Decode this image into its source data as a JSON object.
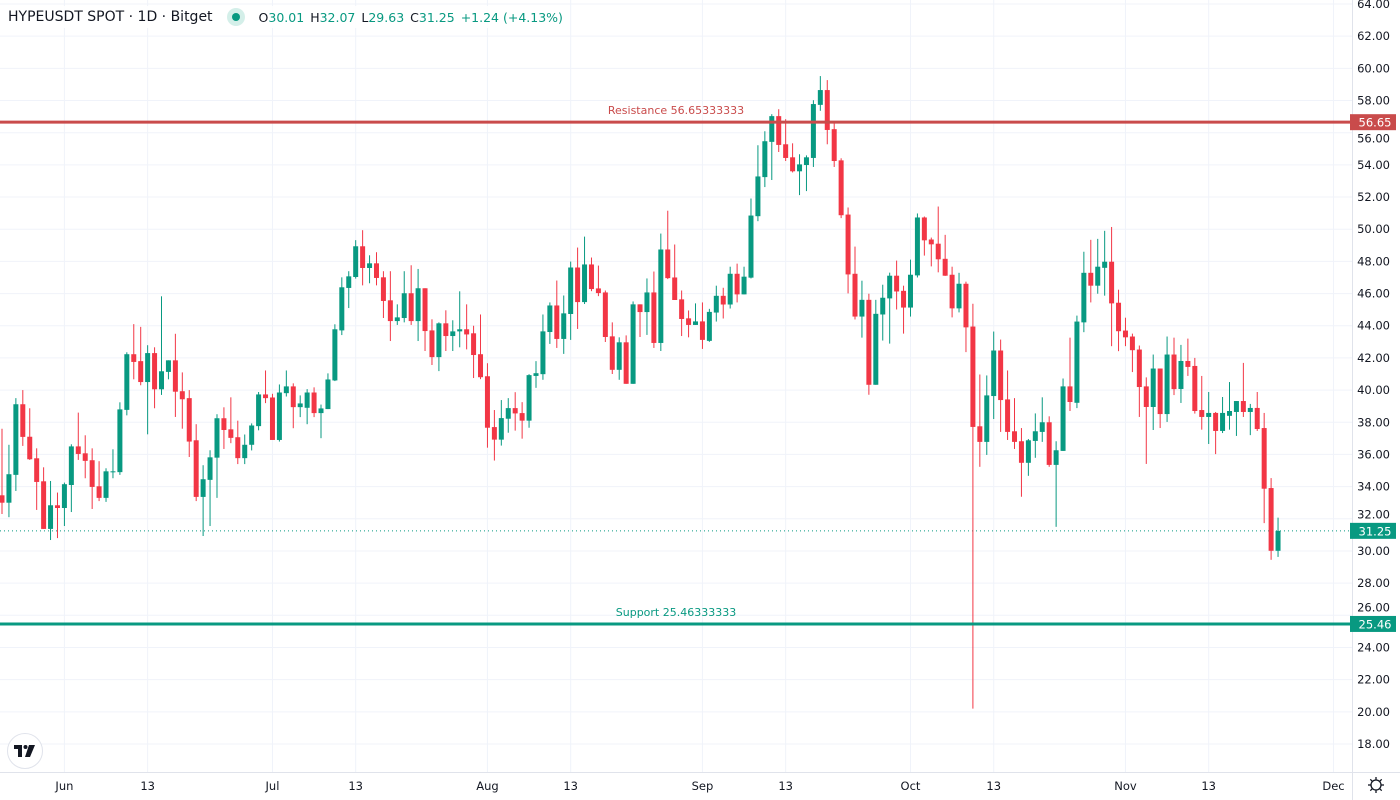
{
  "header": {
    "symbol": "HYPEUSDT SPOT · 1D · Bitget",
    "status_color": "#089981",
    "o_label": "O",
    "o_value": "30.01",
    "h_label": "H",
    "h_value": "32.07",
    "l_label": "L",
    "l_value": "29.63",
    "c_label": "C",
    "c_value": "31.25",
    "change": "+1.24 (+4.13%)"
  },
  "logo": "TV",
  "settings_icon": "gear-icon",
  "colors": {
    "up": "#089981",
    "down": "#f23645",
    "resistance": "#c94b4b",
    "support": "#089981"
  },
  "chart_data": {
    "type": "candlestick",
    "title": "HYPEUSDT SPOT · 1D · Bitget",
    "start_date": "May 23",
    "end_date": "Nov 23",
    "ylim": [
      16.9,
      64.25
    ],
    "y_ticks": [
      "64.00",
      "62.00",
      "60.00",
      "58.00",
      "56.00",
      "54.00",
      "52.00",
      "50.00",
      "48.00",
      "46.00",
      "44.00",
      "42.00",
      "40.00",
      "38.00",
      "36.00",
      "34.00",
      "32.00",
      "30.00",
      "28.00",
      "26.00",
      "24.00",
      "22.00",
      "20.00",
      "18.00"
    ],
    "x_ticks": [
      {
        "label": "Jun",
        "index": 9
      },
      {
        "label": "13",
        "index": 21
      },
      {
        "label": "Jul",
        "index": 39
      },
      {
        "label": "13",
        "index": 51
      },
      {
        "label": "Aug",
        "index": 70
      },
      {
        "label": "13",
        "index": 82
      },
      {
        "label": "Sep",
        "index": 101
      },
      {
        "label": "13",
        "index": 113
      },
      {
        "label": "Oct",
        "index": 131
      },
      {
        "label": "13",
        "index": 143
      },
      {
        "label": "Nov",
        "index": 162
      },
      {
        "label": "13",
        "index": 174
      },
      {
        "label": "Dec",
        "index": 192
      }
    ],
    "last_price": {
      "value": 31.25,
      "label": "31.25"
    },
    "lines": [
      {
        "name": "Resistance",
        "value": 56.65333333,
        "text": "Resistance 56.65333333",
        "tag": "56.65",
        "kind": "resistance"
      },
      {
        "name": "Support",
        "value": 25.46333333,
        "text": "Support 25.46333333",
        "tag": "25.46",
        "kind": "support"
      }
    ],
    "ohlc": [
      [
        33.46,
        37.6,
        32.3,
        33.0
      ],
      [
        33.0,
        36.6,
        32.1,
        34.77
      ],
      [
        34.73,
        39.5,
        33.73,
        39.12
      ],
      [
        39.12,
        40.0,
        36.53,
        37.09
      ],
      [
        37.1,
        38.87,
        35.66,
        35.7
      ],
      [
        35.76,
        36.38,
        32.55,
        34.29
      ],
      [
        34.33,
        35.2,
        31.37,
        31.37
      ],
      [
        31.37,
        34.35,
        30.68,
        32.84
      ],
      [
        32.84,
        33.63,
        30.8,
        32.67
      ],
      [
        32.67,
        34.25,
        31.55,
        34.15
      ],
      [
        34.1,
        36.63,
        32.42,
        36.5
      ],
      [
        36.5,
        38.6,
        35.66,
        36.03
      ],
      [
        36.07,
        37.19,
        34.52,
        35.6
      ],
      [
        35.64,
        36.38,
        32.61,
        33.98
      ],
      [
        34.02,
        35.58,
        33.1,
        33.3
      ],
      [
        33.3,
        35.14,
        33.05,
        34.95
      ],
      [
        34.9,
        36.32,
        34.52,
        34.95
      ],
      [
        34.9,
        39.24,
        34.73,
        38.8
      ],
      [
        38.77,
        42.35,
        38.43,
        42.23
      ],
      [
        42.23,
        44.1,
        40.67,
        41.75
      ],
      [
        41.8,
        43.93,
        40.3,
        40.5
      ],
      [
        40.5,
        42.79,
        37.25,
        42.3
      ],
      [
        42.3,
        42.66,
        38.87,
        40.05
      ],
      [
        40.05,
        45.83,
        39.7,
        41.17
      ],
      [
        41.13,
        41.85,
        40.67,
        41.85
      ],
      [
        41.85,
        43.5,
        38.33,
        39.9
      ],
      [
        39.93,
        41.1,
        37.6,
        39.43
      ],
      [
        39.5,
        40.0,
        35.84,
        36.8
      ],
      [
        36.88,
        37.88,
        33.1,
        33.36
      ],
      [
        33.36,
        35.33,
        30.93,
        34.46
      ],
      [
        34.42,
        36.26,
        31.55,
        35.82
      ],
      [
        35.8,
        38.5,
        33.3,
        38.25
      ],
      [
        38.25,
        38.93,
        36.34,
        37.52
      ],
      [
        37.56,
        39.55,
        36.7,
        37.03
      ],
      [
        37.07,
        38.1,
        35.4,
        35.77
      ],
      [
        35.77,
        37.24,
        35.4,
        36.6
      ],
      [
        36.6,
        37.93,
        36.25,
        37.8
      ],
      [
        37.76,
        39.88,
        37.5,
        39.73
      ],
      [
        39.73,
        41.22,
        39.19,
        39.5
      ],
      [
        39.54,
        39.77,
        36.9,
        36.9
      ],
      [
        36.9,
        40.35,
        36.8,
        39.85
      ],
      [
        39.81,
        41.22,
        39.6,
        40.23
      ],
      [
        40.23,
        40.42,
        37.63,
        38.94
      ],
      [
        38.94,
        39.67,
        38.32,
        39.17
      ],
      [
        38.9,
        40.06,
        37.88,
        39.85
      ],
      [
        39.85,
        40.17,
        38.32,
        38.57
      ],
      [
        38.57,
        39.1,
        37.01,
        38.86
      ],
      [
        38.82,
        41.04,
        38.82,
        40.66
      ],
      [
        40.6,
        44.09,
        40.56,
        43.78
      ],
      [
        43.71,
        47.01,
        43.42,
        46.39
      ],
      [
        46.35,
        47.39,
        45.1,
        47.07
      ],
      [
        47.03,
        49.32,
        46.93,
        48.94
      ],
      [
        48.94,
        49.94,
        46.51,
        47.59
      ],
      [
        47.59,
        48.38,
        46.64,
        47.88
      ],
      [
        47.88,
        48.57,
        46.51,
        46.97
      ],
      [
        47.01,
        47.39,
        44.48,
        45.54
      ],
      [
        45.58,
        47.39,
        43.05,
        44.29
      ],
      [
        44.29,
        45.33,
        44.05,
        44.52
      ],
      [
        44.48,
        47.39,
        44.21,
        46.02
      ],
      [
        46.02,
        47.76,
        44.05,
        44.29
      ],
      [
        44.29,
        47.53,
        43.05,
        46.33
      ],
      [
        46.33,
        46.33,
        42.43,
        43.67
      ],
      [
        43.71,
        44.4,
        41.56,
        42.05
      ],
      [
        42.05,
        44.21,
        41.18,
        44.15
      ],
      [
        44.15,
        44.96,
        42.43,
        43.36
      ],
      [
        43.36,
        44.34,
        42.43,
        43.65
      ],
      [
        43.65,
        46.14,
        42.66,
        43.78
      ],
      [
        43.78,
        45.33,
        42.53,
        43.46
      ],
      [
        43.53,
        44.0,
        40.75,
        42.18
      ],
      [
        42.23,
        44.7,
        40.68,
        40.8
      ],
      [
        40.86,
        41.67,
        36.42,
        37.66
      ],
      [
        37.7,
        38.76,
        35.62,
        36.92
      ],
      [
        36.92,
        39.38,
        36.55,
        38.26
      ],
      [
        38.22,
        39.5,
        37.35,
        38.88
      ],
      [
        38.88,
        39.87,
        37.48,
        38.55
      ],
      [
        38.57,
        39.25,
        36.98,
        38.1
      ],
      [
        38.1,
        40.99,
        37.66,
        40.93
      ],
      [
        40.88,
        41.8,
        40.14,
        41.05
      ],
      [
        40.99,
        44.7,
        40.64,
        43.65
      ],
      [
        43.61,
        45.45,
        42.87,
        45.26
      ],
      [
        45.26,
        46.81,
        42.62,
        43.18
      ],
      [
        43.18,
        45.88,
        42.25,
        44.77
      ],
      [
        44.73,
        47.99,
        43.12,
        47.62
      ],
      [
        47.62,
        48.86,
        43.8,
        45.47
      ],
      [
        45.47,
        49.54,
        45.35,
        47.81
      ],
      [
        47.81,
        48.24,
        46.15,
        46.28
      ],
      [
        46.32,
        47.74,
        45.84,
        46.03
      ],
      [
        46.07,
        46.19,
        42.99,
        43.3
      ],
      [
        43.34,
        44.21,
        41.0,
        41.26
      ],
      [
        41.26,
        43.28,
        40.64,
        42.97
      ],
      [
        42.97,
        43.4,
        40.39,
        40.39
      ],
      [
        40.39,
        45.51,
        40.39,
        45.33
      ],
      [
        45.33,
        45.33,
        43.3,
        44.85
      ],
      [
        44.85,
        46.94,
        43.43,
        46.07
      ],
      [
        46.07,
        47.37,
        42.62,
        42.93
      ],
      [
        42.93,
        49.73,
        42.43,
        48.74
      ],
      [
        48.74,
        51.15,
        46.9,
        46.96
      ],
      [
        47.0,
        49.05,
        45.6,
        45.6
      ],
      [
        45.64,
        46.19,
        43.36,
        44.42
      ],
      [
        44.46,
        44.95,
        43.28,
        44.05
      ],
      [
        44.05,
        45.39,
        44.05,
        44.27
      ],
      [
        44.27,
        45.45,
        42.56,
        43.12
      ],
      [
        43.06,
        45.05,
        43.0,
        44.86
      ],
      [
        44.82,
        46.49,
        44.26,
        45.86
      ],
      [
        45.86,
        46.36,
        44.45,
        45.32
      ],
      [
        45.32,
        47.67,
        45.07,
        47.23
      ],
      [
        47.23,
        47.86,
        45.45,
        45.95
      ],
      [
        45.95,
        47.67,
        45.95,
        47.05
      ],
      [
        46.99,
        51.91,
        46.94,
        50.85
      ],
      [
        50.81,
        55.22,
        50.5,
        53.28
      ],
      [
        53.24,
        56.09,
        52.62,
        55.47
      ],
      [
        55.43,
        57.15,
        53.06,
        57.03
      ],
      [
        57.03,
        57.46,
        54.8,
        55.24
      ],
      [
        55.28,
        56.84,
        54.24,
        54.43
      ],
      [
        54.47,
        55.34,
        53.53,
        53.6
      ],
      [
        53.6,
        54.66,
        52.12,
        54.03
      ],
      [
        53.99,
        54.59,
        52.37,
        54.47
      ],
      [
        54.43,
        58.02,
        53.87,
        57.78
      ],
      [
        57.73,
        59.52,
        57.36,
        58.65
      ],
      [
        58.65,
        59.27,
        55.28,
        56.17
      ],
      [
        56.22,
        56.59,
        53.87,
        54.24
      ],
      [
        54.28,
        54.41,
        50.69,
        50.87
      ],
      [
        50.91,
        51.35,
        46.01,
        47.19
      ],
      [
        47.23,
        48.92,
        44.39,
        44.57
      ],
      [
        44.57,
        46.8,
        43.26,
        45.61
      ],
      [
        45.61,
        45.99,
        39.71,
        40.33
      ],
      [
        40.33,
        45.61,
        40.33,
        44.74
      ],
      [
        44.7,
        46.55,
        43.08,
        45.74
      ],
      [
        45.7,
        47.3,
        42.89,
        47.11
      ],
      [
        47.11,
        48.05,
        45.01,
        46.13
      ],
      [
        46.17,
        46.49,
        43.51,
        45.13
      ],
      [
        45.13,
        48.11,
        44.57,
        47.17
      ],
      [
        47.13,
        50.98,
        47.0,
        50.73
      ],
      [
        50.73,
        50.79,
        48.36,
        49.31
      ],
      [
        49.36,
        49.48,
        47.69,
        49.06
      ],
      [
        49.1,
        51.41,
        47.32,
        48.13
      ],
      [
        48.16,
        49.65,
        47.1,
        47.11
      ],
      [
        47.17,
        47.67,
        44.52,
        45.08
      ],
      [
        45.08,
        47.29,
        44.83,
        46.61
      ],
      [
        46.61,
        46.74,
        42.36,
        43.9
      ],
      [
        43.95,
        45.37,
        20.2,
        37.71
      ],
      [
        37.75,
        40.97,
        35.23,
        36.78
      ],
      [
        36.78,
        40.91,
        35.97,
        39.67
      ],
      [
        39.63,
        43.64,
        38.2,
        42.46
      ],
      [
        42.46,
        43.14,
        37.4,
        39.38
      ],
      [
        39.42,
        41.22,
        36.9,
        37.4
      ],
      [
        37.44,
        39.5,
        36.34,
        36.78
      ],
      [
        36.82,
        37.64,
        33.37,
        35.48
      ],
      [
        35.48,
        36.96,
        34.67,
        36.88
      ],
      [
        36.84,
        38.55,
        35.79,
        37.44
      ],
      [
        37.4,
        39.55,
        36.78,
        38.0
      ],
      [
        38.0,
        38.37,
        35.23,
        35.35
      ],
      [
        35.35,
        36.82,
        31.5,
        36.26
      ],
      [
        36.22,
        40.72,
        36.22,
        40.23
      ],
      [
        40.23,
        43.26,
        38.7,
        39.26
      ],
      [
        39.21,
        44.63,
        38.88,
        44.26
      ],
      [
        44.21,
        48.6,
        43.6,
        47.29
      ],
      [
        47.29,
        49.34,
        45.45,
        46.49
      ],
      [
        46.49,
        49.4,
        45.99,
        47.67
      ],
      [
        47.6,
        49.9,
        45.87,
        47.98
      ],
      [
        47.98,
        50.14,
        42.73,
        45.39
      ],
      [
        45.43,
        46.24,
        42.42,
        43.66
      ],
      [
        43.7,
        44.5,
        42.73,
        43.28
      ],
      [
        43.33,
        43.51,
        41.12,
        42.48
      ],
      [
        42.52,
        42.77,
        38.33,
        40.19
      ],
      [
        40.23,
        40.79,
        35.41,
        38.95
      ],
      [
        38.95,
        42.21,
        37.52,
        41.34
      ],
      [
        41.34,
        41.34,
        37.64,
        38.51
      ],
      [
        38.51,
        43.33,
        38.02,
        42.21
      ],
      [
        42.21,
        43.26,
        39.69,
        40.06
      ],
      [
        40.07,
        42.81,
        39.2,
        41.81
      ],
      [
        41.81,
        43.2,
        40.88,
        41.44
      ],
      [
        41.5,
        42.0,
        38.54,
        38.7
      ],
      [
        38.76,
        40.88,
        37.54,
        38.33
      ],
      [
        38.33,
        39.88,
        36.65,
        38.58
      ],
      [
        38.58,
        38.64,
        36.02,
        37.46
      ],
      [
        37.46,
        39.57,
        37.33,
        38.58
      ],
      [
        38.4,
        40.5,
        37.54,
        38.7
      ],
      [
        38.64,
        39.32,
        37.15,
        39.32
      ],
      [
        39.32,
        41.69,
        38.33,
        38.64
      ],
      [
        38.64,
        39.14,
        37.2,
        38.89
      ],
      [
        38.89,
        39.88,
        37.46,
        37.58
      ],
      [
        37.64,
        38.58,
        31.73,
        33.87
      ],
      [
        33.91,
        34.53,
        29.45,
        30.01
      ],
      [
        30.01,
        32.07,
        29.63,
        31.25
      ]
    ]
  }
}
